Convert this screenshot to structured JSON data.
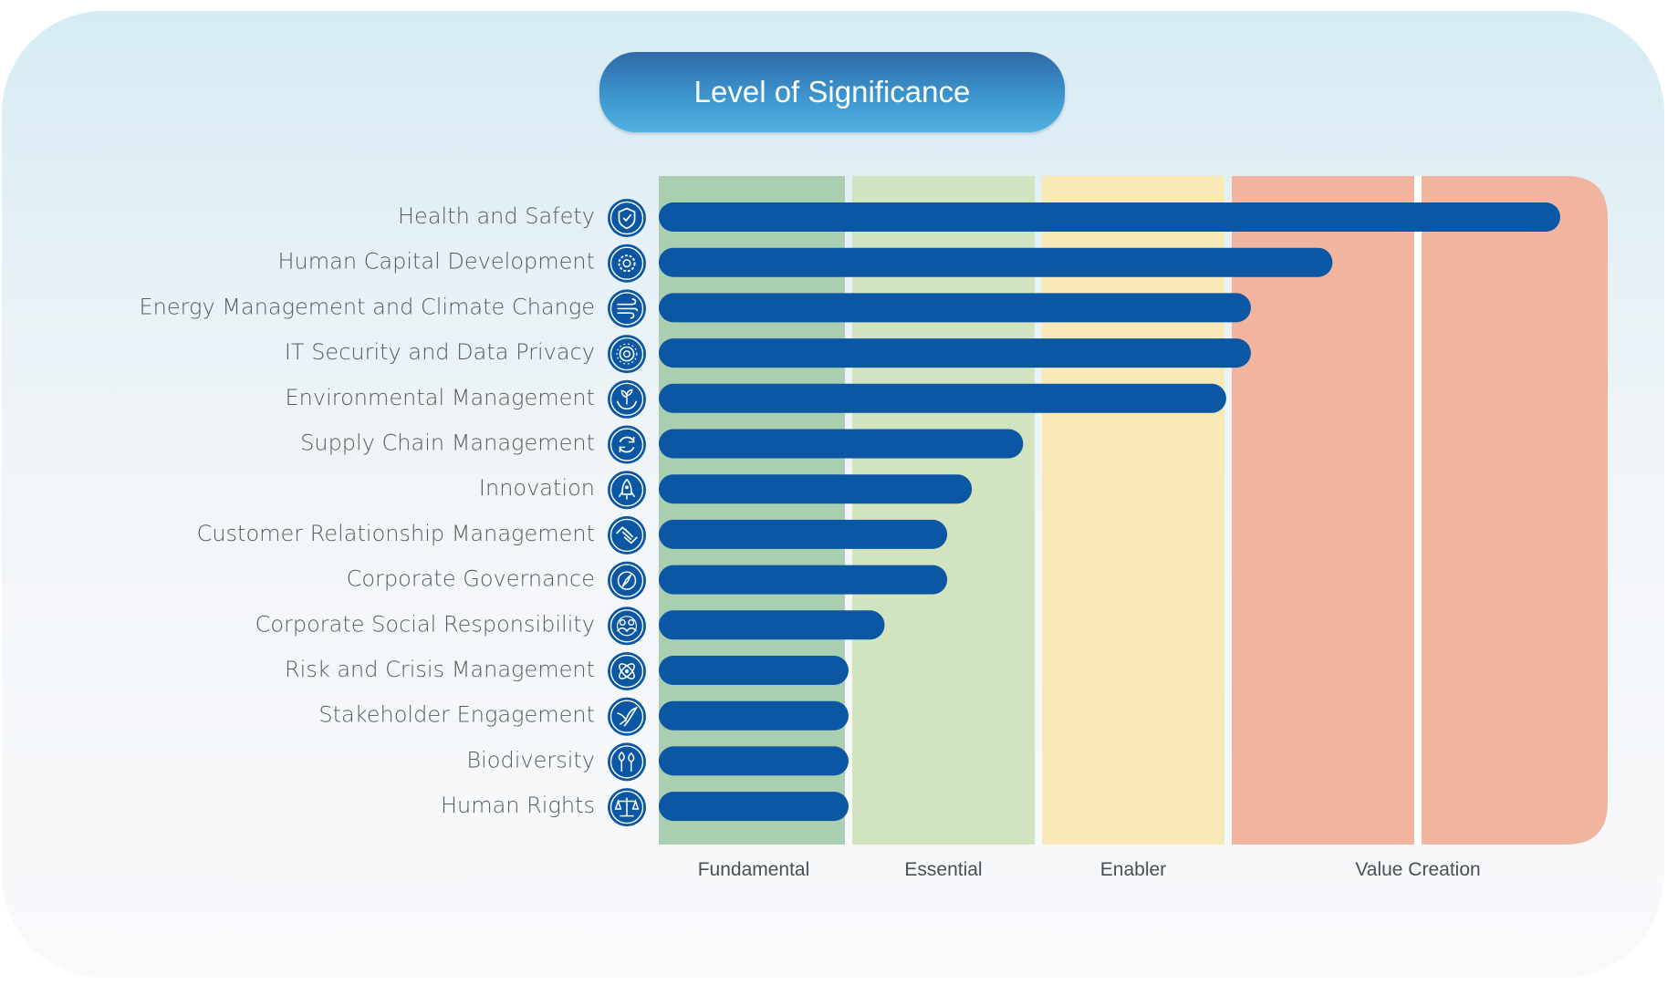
{
  "title": "Level of Significance",
  "chart_data": {
    "type": "bar",
    "orientation": "horizontal",
    "title": "Level of Significance",
    "categories": [
      "Health and Safety",
      "Human Capital Development",
      "Energy Management and Climate Change",
      "IT Security and Data Privacy",
      "Environmental Management",
      "Supply Chain Management",
      "Innovation",
      "Customer Relationship Management",
      "Corporate Governance",
      "Corporate Social Responsibility",
      "Risk and Crisis Management",
      "Stakeholder Engagement",
      "Biodiversity",
      "Human Rights"
    ],
    "icons": [
      "shield-check-icon",
      "gear-people-icon",
      "wind-icon",
      "lightbulb-gear-icon",
      "hands-plant-icon",
      "recycle-arrows-icon",
      "rocket-icon",
      "handshake-icon",
      "compass-icon",
      "people-group-icon",
      "atom-icon",
      "dove-icon",
      "trees-icon",
      "scales-icon"
    ],
    "values": [
      4.75,
      3.55,
      3.12,
      3.12,
      2.99,
      1.92,
      1.65,
      1.52,
      1.52,
      1.19,
      1.0,
      1.0,
      1.0,
      1.0
    ],
    "xlim": [
      0,
      5
    ],
    "zones": [
      {
        "label": "Fundamental",
        "from": 0,
        "to": 1,
        "color": "#a9cfb0"
      },
      {
        "label": "Essential",
        "from": 1,
        "to": 2,
        "color": "#d2e3bf"
      },
      {
        "label": "Enabler",
        "from": 2,
        "to": 3,
        "color": "#f8e9b6"
      },
      {
        "label": "Value Creation",
        "from": 3,
        "to": 5,
        "color": "#f1b49e"
      }
    ],
    "bar_color": "#0b57a3",
    "icon_color": "#0b57a3",
    "grid": false,
    "legend": "none"
  }
}
